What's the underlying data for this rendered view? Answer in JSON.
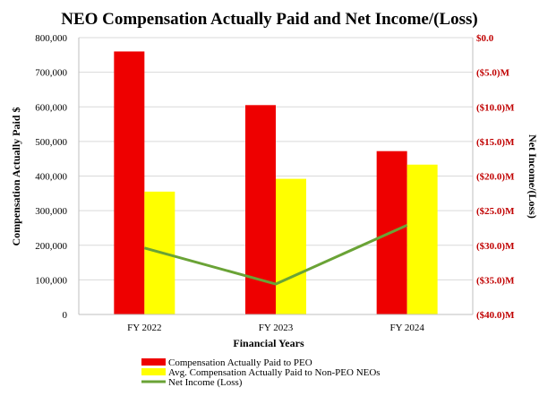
{
  "colors": {
    "peo": "#ee0000",
    "non_peo": "#ffff00",
    "net_income": "#6aa336",
    "right_axis_text": "#c00000",
    "gridline": "#d9d9d9"
  },
  "chart_data": {
    "type": "bar",
    "title": "NEO Compensation Actually Paid and Net Income/(Loss)",
    "xlabel": "Financial  Years",
    "ylabel": "Compensation  Actually  Paid $",
    "y2label": "Net Income/(Loss)",
    "categories": [
      "FY 2022",
      "FY 2023",
      "FY 2024"
    ],
    "ylim": [
      0,
      800000
    ],
    "y2lim": [
      -40.0,
      0.0
    ],
    "grid": true,
    "legend_position": "bottom",
    "yticks": [
      "0",
      "100,000",
      "200,000",
      "300,000",
      "400,000",
      "500,000",
      "600,000",
      "700,000",
      "800,000"
    ],
    "y2ticks": [
      "$0.0",
      "($5.0)M",
      "($10.0)M",
      "($15.0)M",
      "($20.0)M",
      "($25.0)M",
      "($30.0)M",
      "($35.0)M",
      "($40.0)M"
    ],
    "series": [
      {
        "name": "Compensation Actually Paid to PEO",
        "type": "bar",
        "axis": "left",
        "values": [
          760000,
          605000,
          472000
        ]
      },
      {
        "name": "Avg. Compensation Actually Paid to Non-PEO NEOs",
        "type": "bar",
        "axis": "left",
        "values": [
          355000,
          392000,
          433000
        ]
      },
      {
        "name": "Net Income (Loss)",
        "type": "line",
        "axis": "right",
        "values": [
          -30.4,
          -35.6,
          -27.1
        ]
      }
    ]
  }
}
